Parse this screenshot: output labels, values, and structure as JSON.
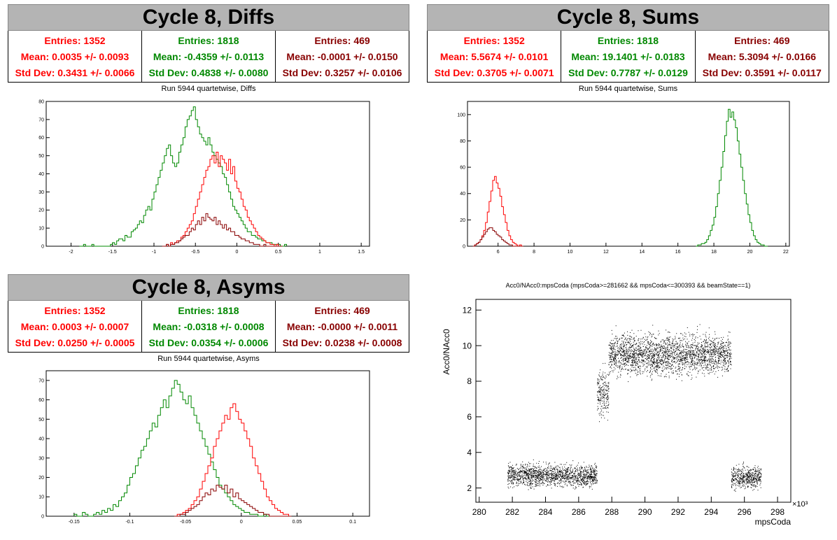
{
  "panels": {
    "diffs": {
      "title": "Cycle 8, Diffs",
      "subtitle": "Run 5944 quartetwise, Diffs",
      "stats": [
        {
          "entries": "Entries: 1352",
          "mean": "Mean: 0.0035 +/- 0.0093",
          "std": "Std Dev: 0.3431 +/- 0.0066",
          "color": "#ff0000"
        },
        {
          "entries": "Entries: 1818",
          "mean": "Mean: -0.4359 +/- 0.0113",
          "std": "Std Dev: 0.4838 +/- 0.0080",
          "color": "#008800"
        },
        {
          "entries": "Entries: 469",
          "mean": "Mean: -0.0001 +/- 0.0150",
          "std": "Std Dev: 0.3257 +/- 0.0106",
          "color": "#880000"
        }
      ]
    },
    "sums": {
      "title": "Cycle 8, Sums",
      "subtitle": "Run 5944 quartetwise, Sums",
      "stats": [
        {
          "entries": "Entries: 1352",
          "mean": "Mean: 5.5674 +/- 0.0101",
          "std": "Std Dev: 0.3705 +/- 0.0071",
          "color": "#ff0000"
        },
        {
          "entries": "Entries: 1818",
          "mean": "Mean: 19.1401 +/- 0.0183",
          "std": "Std Dev: 0.7787 +/- 0.0129",
          "color": "#008800"
        },
        {
          "entries": "Entries: 469",
          "mean": "Mean: 5.3094 +/- 0.0166",
          "std": "Std Dev: 0.3591 +/- 0.0117",
          "color": "#880000"
        }
      ]
    },
    "asyms": {
      "title": "Cycle 8, Asyms",
      "subtitle": "Run 5944 quartetwise, Asyms",
      "stats": [
        {
          "entries": "Entries: 1352",
          "mean": "Mean: 0.0003 +/- 0.0007",
          "std": "Std Dev: 0.0250 +/- 0.0005",
          "color": "#ff0000"
        },
        {
          "entries": "Entries: 1818",
          "mean": "Mean: -0.0318 +/- 0.0008",
          "std": "Std Dev: 0.0354 +/- 0.0006",
          "color": "#008800"
        },
        {
          "entries": "Entries: 469",
          "mean": "Mean: -0.0000 +/- 0.0011",
          "std": "Std Dev: 0.0238 +/- 0.0008",
          "color": "#880000"
        }
      ]
    },
    "scatter": {
      "subtitle": "Acc0/NAcc0:mpsCoda (mpsCoda>=281662 && mpsCoda<=300393 && beamState==1)"
    }
  },
  "chart_data": [
    {
      "id": "diffs",
      "type": "bar",
      "histtype": "step",
      "xlim": [
        -2.3,
        1.6
      ],
      "ylim": [
        0,
        80
      ],
      "xticks": [
        "-2",
        "-1.5",
        "-1",
        "-0.5",
        "0",
        "0.5",
        "1",
        "1.5"
      ],
      "xtick_values": [
        -2,
        -1.5,
        -1,
        -0.5,
        0,
        0.5,
        1,
        1.5
      ],
      "yticks": [
        "0",
        "10",
        "20",
        "30",
        "40",
        "50",
        "60",
        "70",
        "80"
      ],
      "ytick_values": [
        0,
        10,
        20,
        30,
        40,
        50,
        60,
        70,
        80
      ],
      "series": [
        {
          "color": "#008800",
          "x_start": -1.9,
          "bin_width": 0.025,
          "values": [
            0,
            0,
            1,
            0,
            0,
            0,
            1,
            0,
            0,
            0,
            0,
            0,
            0,
            0,
            0,
            1,
            2,
            1,
            3,
            4,
            4,
            3,
            6,
            5,
            5,
            8,
            9,
            10,
            12,
            14,
            13,
            17,
            20,
            22,
            20,
            26,
            30,
            34,
            38,
            42,
            46,
            50,
            54,
            56,
            50,
            46,
            44,
            46,
            52,
            56,
            60,
            66,
            70,
            72,
            75,
            77,
            70,
            66,
            62,
            60,
            58,
            56,
            60,
            56,
            52,
            50,
            48,
            46,
            44,
            40,
            38,
            34,
            30,
            26,
            22,
            20,
            18,
            16,
            14,
            12,
            10,
            8,
            8,
            6,
            6,
            5,
            4,
            4,
            3,
            3,
            2,
            2,
            2,
            1,
            1,
            1,
            1,
            0,
            0,
            1
          ]
        },
        {
          "color": "#ff0000",
          "x_start": -0.9,
          "bin_width": 0.025,
          "values": [
            0,
            0,
            1,
            0,
            2,
            1,
            2,
            3,
            3,
            5,
            6,
            8,
            10,
            12,
            14,
            18,
            22,
            26,
            30,
            34,
            38,
            42,
            44,
            48,
            50,
            46,
            52,
            44,
            50,
            48,
            46,
            42,
            48,
            40,
            44,
            36,
            32,
            30,
            26,
            22,
            20,
            16,
            14,
            12,
            10,
            8,
            6,
            5,
            4,
            3,
            2,
            2,
            1,
            1,
            0,
            1,
            0,
            0
          ]
        },
        {
          "color": "#880000",
          "x_start": -0.9,
          "bin_width": 0.025,
          "values": [
            0,
            0,
            1,
            0,
            1,
            1,
            2,
            2,
            3,
            4,
            5,
            6,
            6,
            8,
            10,
            9,
            12,
            14,
            12,
            16,
            14,
            18,
            16,
            15,
            14,
            16,
            12,
            14,
            12,
            10,
            12,
            9,
            10,
            8,
            8,
            6,
            6,
            5,
            4,
            4,
            3,
            3,
            2,
            2,
            1,
            1,
            1,
            0,
            0,
            1,
            0,
            0,
            0,
            0,
            0,
            0,
            0,
            0
          ]
        }
      ]
    },
    {
      "id": "sums",
      "type": "bar",
      "histtype": "step",
      "xlim": [
        4.3,
        22.2
      ],
      "ylim": [
        0,
        110
      ],
      "xticks": [
        "6",
        "8",
        "10",
        "12",
        "14",
        "16",
        "18",
        "20",
        "22"
      ],
      "xtick_values": [
        6,
        8,
        10,
        12,
        14,
        16,
        18,
        20,
        22
      ],
      "yticks": [
        "0",
        "20",
        "40",
        "60",
        "80",
        "100"
      ],
      "ytick_values": [
        0,
        20,
        40,
        60,
        80,
        100
      ],
      "series": [
        {
          "color": "#ff0000",
          "x_start": 4.6,
          "bin_width": 0.1,
          "values": [
            0,
            1,
            2,
            3,
            5,
            8,
            12,
            18,
            26,
            34,
            42,
            50,
            53,
            48,
            44,
            38,
            30,
            24,
            18,
            12,
            8,
            5,
            3,
            2,
            1,
            0,
            1,
            0
          ]
        },
        {
          "color": "#880000",
          "x_start": 4.6,
          "bin_width": 0.1,
          "values": [
            0,
            1,
            2,
            3,
            5,
            7,
            9,
            11,
            13,
            14,
            14,
            12,
            11,
            9,
            8,
            7,
            5,
            4,
            3,
            2,
            1,
            1,
            0,
            0,
            0,
            0,
            0,
            0
          ]
        },
        {
          "color": "#008800",
          "x_start": 17.0,
          "bin_width": 0.1,
          "values": [
            0,
            1,
            1,
            2,
            2,
            3,
            5,
            8,
            12,
            16,
            22,
            30,
            40,
            50,
            60,
            72,
            84,
            95,
            104,
            98,
            102,
            96,
            90,
            80,
            70,
            60,
            50,
            40,
            32,
            24,
            18,
            12,
            8,
            5,
            3,
            2,
            1,
            1,
            0,
            0
          ]
        }
      ]
    },
    {
      "id": "asyms",
      "type": "bar",
      "histtype": "step",
      "xlim": [
        -0.175,
        0.115
      ],
      "ylim": [
        0,
        75
      ],
      "xticks": [
        "-0.15",
        "-0.1",
        "-0.05",
        "0",
        "0.05",
        "0.1"
      ],
      "xtick_values": [
        -0.15,
        -0.1,
        -0.05,
        0,
        0.05,
        0.1
      ],
      "yticks": [
        "0",
        "10",
        "20",
        "30",
        "40",
        "50",
        "60",
        "70"
      ],
      "ytick_values": [
        0,
        10,
        20,
        30,
        40,
        50,
        60,
        70
      ],
      "series": [
        {
          "color": "#008800",
          "x_start": -0.15,
          "bin_width": 0.0025,
          "values": [
            1,
            0,
            0,
            2,
            1,
            0,
            0,
            1,
            2,
            1,
            3,
            2,
            4,
            3,
            6,
            5,
            8,
            10,
            12,
            16,
            20,
            22,
            26,
            30,
            34,
            36,
            40,
            44,
            48,
            46,
            52,
            56,
            60,
            56,
            62,
            66,
            70,
            68,
            64,
            60,
            58,
            62,
            56,
            52,
            48,
            44,
            40,
            36,
            32,
            28,
            24,
            20,
            16,
            14,
            12,
            10,
            8,
            6,
            5,
            4,
            3,
            2,
            2,
            1,
            1,
            1,
            0,
            0,
            1,
            0,
            0,
            0,
            0
          ]
        },
        {
          "color": "#ff0000",
          "x_start": -0.06,
          "bin_width": 0.0025,
          "values": [
            0,
            1,
            1,
            2,
            3,
            4,
            6,
            8,
            10,
            14,
            18,
            22,
            26,
            30,
            36,
            40,
            44,
            48,
            52,
            50,
            56,
            58,
            54,
            50,
            48,
            44,
            40,
            36,
            30,
            26,
            22,
            18,
            14,
            10,
            8,
            6,
            4,
            3,
            2,
            1,
            1,
            0
          ]
        },
        {
          "color": "#880000",
          "x_start": -0.06,
          "bin_width": 0.0025,
          "values": [
            0,
            0,
            1,
            1,
            2,
            3,
            4,
            5,
            6,
            8,
            10,
            12,
            11,
            14,
            13,
            16,
            15,
            14,
            16,
            12,
            14,
            10,
            12,
            9,
            8,
            7,
            6,
            5,
            4,
            3,
            2,
            2,
            1,
            1,
            0,
            0,
            0,
            0,
            0,
            0,
            0,
            0
          ]
        }
      ]
    },
    {
      "id": "scatter",
      "type": "scatter",
      "ylabel": "Acc0/NAcc0",
      "xlabel": "mpsCoda",
      "x_exponent_label": "×10³",
      "xlim": [
        279.8,
        298.8
      ],
      "ylim": [
        1.2,
        12.6
      ],
      "xticks": [
        "280",
        "282",
        "284",
        "286",
        "288",
        "290",
        "292",
        "294",
        "296",
        "298"
      ],
      "xtick_values": [
        280,
        282,
        284,
        286,
        288,
        290,
        292,
        294,
        296,
        298
      ],
      "yticks": [
        "2",
        "4",
        "6",
        "8",
        "10",
        "12"
      ],
      "ytick_values": [
        2,
        4,
        6,
        8,
        10,
        12
      ],
      "color": "#000000",
      "clusters": [
        {
          "x_range": [
            281.7,
            287.1
          ],
          "y_center": 2.7,
          "y_spread": 0.3,
          "count": 1500
        },
        {
          "x_range": [
            287.1,
            287.8
          ],
          "y_center": 7.3,
          "y_spread": 0.6,
          "count": 220
        },
        {
          "x_range": [
            287.8,
            295.2
          ],
          "y_center": 9.5,
          "y_spread": 0.55,
          "count": 2400
        },
        {
          "x_range": [
            295.2,
            297.0
          ],
          "y_center": 2.6,
          "y_spread": 0.3,
          "count": 500
        }
      ]
    }
  ]
}
